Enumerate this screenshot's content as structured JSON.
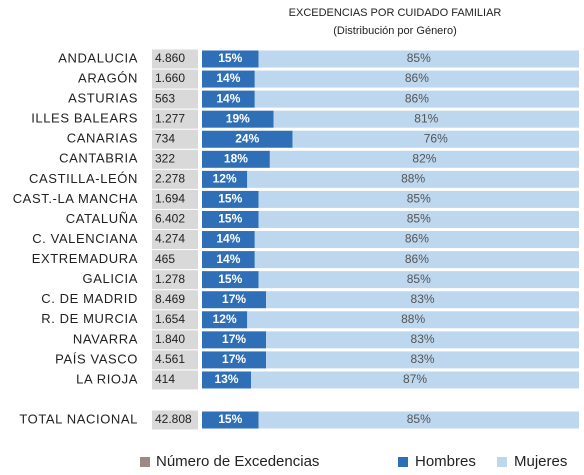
{
  "chart_data": {
    "type": "stacked-bar-100",
    "title": "EXCEDENCIAS POR CUIDADO FAMILIAR",
    "subtitle": "(Distribución por Género)",
    "categories": [
      "ANDALUCIA",
      "ARAGÓN",
      "ASTURIAS",
      "ILLES BALEARS",
      "CANARIAS",
      "CANTABRIA",
      "CASTILLA-LEÓN",
      "CAST.-LA MANCHA",
      "CATALUÑA",
      "C. VALENCIANA",
      "EXTREMADURA",
      "GALICIA",
      "C. DE MADRID",
      "R. DE MURCIA",
      "NAVARRA",
      "PAÍS VASCO",
      "LA RIOJA",
      "TOTAL NACIONAL"
    ],
    "xlim": [
      0,
      100
    ],
    "counts": {
      "name": "Número de Excedencias",
      "color": "#d9d9d9",
      "legend_color": "#9e8a84",
      "values": [
        4860,
        1660,
        563,
        1277,
        734,
        322,
        2278,
        1694,
        6402,
        4274,
        465,
        1278,
        8469,
        1654,
        1840,
        4561,
        414,
        42808
      ],
      "value_labels": [
        "4.860",
        "1.660",
        "563",
        "1.277",
        "734",
        "322",
        "2.278",
        "1.694",
        "6.402",
        "4.274",
        "465",
        "1.278",
        "8.469",
        "1.654",
        "1.840",
        "4.561",
        "414",
        "42.808"
      ]
    },
    "series": [
      {
        "name": "Hombres",
        "color": "#2e6fb7",
        "values": [
          15,
          14,
          14,
          19,
          24,
          18,
          12,
          15,
          15,
          14,
          14,
          15,
          17,
          12,
          17,
          17,
          13,
          15
        ],
        "value_labels": [
          "15%",
          "14%",
          "14%",
          "19%",
          "24%",
          "18%",
          "12%",
          "15%",
          "15%",
          "14%",
          "14%",
          "15%",
          "17%",
          "12%",
          "17%",
          "17%",
          "13%",
          "15%"
        ]
      },
      {
        "name": "Mujeres",
        "color": "#bdd7ee",
        "values": [
          85,
          86,
          86,
          81,
          76,
          82,
          88,
          85,
          85,
          86,
          86,
          85,
          83,
          88,
          83,
          83,
          87,
          85
        ],
        "value_labels": [
          "85%",
          "86%",
          "86%",
          "81%",
          "76%",
          "82%",
          "88%",
          "85%",
          "85%",
          "86%",
          "86%",
          "85%",
          "83%",
          "88%",
          "83%",
          "83%",
          "87%",
          "85%"
        ]
      }
    ]
  }
}
